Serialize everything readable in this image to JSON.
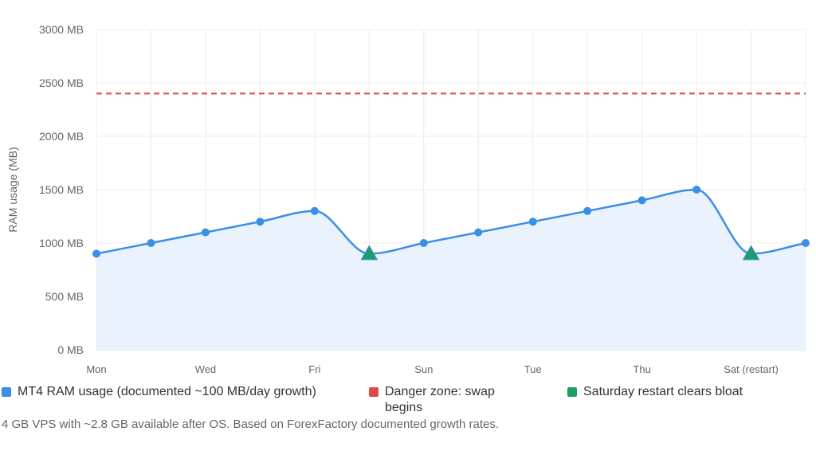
{
  "chart_data": {
    "type": "line",
    "title": "",
    "xlabel": "",
    "ylabel": "RAM usage (MB)",
    "ylim": [
      0,
      3000
    ],
    "yticks": [
      0,
      500,
      1000,
      1500,
      2000,
      2500,
      3000
    ],
    "ytick_labels": [
      "0 MB",
      "500 MB",
      "1000 MB",
      "1500 MB",
      "2000 MB",
      "2500 MB",
      "3000 MB"
    ],
    "categories": [
      "Mon",
      "",
      "Wed",
      "",
      "Fri",
      "",
      "Sun",
      "",
      "Tue",
      "",
      "Thu",
      "",
      "Sat (restart)",
      ""
    ],
    "series": [
      {
        "name": "MT4 RAM usage (documented ~100 MB/day growth)",
        "color": "#3b8ee6",
        "fill": "#eaf3fd",
        "values": [
          900,
          1000,
          1100,
          1200,
          1300,
          900,
          1000,
          1100,
          1200,
          1300,
          1400,
          1500,
          900,
          1000
        ]
      },
      {
        "name": "Danger zone: swap begins",
        "color": "#e04848",
        "style": "dashed",
        "values": [
          2400,
          2400,
          2400,
          2400,
          2400,
          2400,
          2400,
          2400,
          2400,
          2400,
          2400,
          2400,
          2400,
          2400
        ]
      },
      {
        "name": "Saturday restart clears bloat",
        "color": "#1e9e63",
        "marker": "triangle",
        "points": [
          {
            "index": 5,
            "value": 900
          },
          {
            "index": 12,
            "value": 900
          }
        ]
      }
    ],
    "grid": true,
    "legend_position": "bottom"
  },
  "footnote": "4 GB VPS with ~2.8 GB available after OS. Based on ForexFactory documented growth rates."
}
